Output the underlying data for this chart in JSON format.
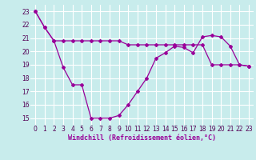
{
  "xlabel": "Windchill (Refroidissement éolien,°C)",
  "background_color": "#c8ecec",
  "grid_color": "#b8dede",
  "line_color": "#990099",
  "x_line1": [
    0,
    1,
    2,
    3,
    4,
    5,
    6,
    7,
    8,
    9,
    10,
    11,
    12,
    13,
    14,
    15,
    16,
    17,
    18,
    19,
    20,
    21,
    22,
    23
  ],
  "y_line1": [
    23.0,
    21.8,
    20.8,
    20.8,
    20.8,
    20.8,
    20.8,
    20.8,
    20.8,
    20.8,
    20.5,
    20.5,
    20.5,
    20.5,
    20.5,
    20.5,
    20.5,
    20.5,
    20.5,
    19.0,
    19.0,
    19.0,
    19.0,
    18.9
  ],
  "x_line2": [
    0,
    1,
    2,
    3,
    4,
    5,
    6,
    7,
    8,
    9,
    10,
    11,
    12,
    13,
    14,
    15,
    16,
    17,
    18,
    19,
    20,
    21,
    22,
    23
  ],
  "y_line2": [
    23.0,
    21.8,
    20.8,
    18.8,
    17.5,
    17.5,
    15.0,
    15.0,
    15.0,
    15.2,
    16.0,
    17.0,
    18.0,
    19.5,
    19.9,
    20.4,
    20.3,
    19.9,
    21.1,
    21.2,
    21.1,
    20.4,
    19.0,
    18.9
  ],
  "ylim": [
    14.5,
    23.5
  ],
  "yticks": [
    15,
    16,
    17,
    18,
    19,
    20,
    21,
    22,
    23
  ],
  "xlim": [
    -0.5,
    23.5
  ],
  "xticks": [
    0,
    1,
    2,
    3,
    4,
    5,
    6,
    7,
    8,
    9,
    10,
    11,
    12,
    13,
    14,
    15,
    16,
    17,
    18,
    19,
    20,
    21,
    22,
    23
  ],
  "xtick_labels": [
    "0",
    "1",
    "2",
    "3",
    "4",
    "5",
    "6",
    "7",
    "8",
    "9",
    "10",
    "11",
    "12",
    "13",
    "14",
    "15",
    "16",
    "17",
    "18",
    "19",
    "20",
    "21",
    "22",
    "23"
  ],
  "tick_fontsize": 5.5,
  "xlabel_fontsize": 6.0,
  "marker": "D",
  "markersize": 2.0,
  "linewidth": 0.9
}
